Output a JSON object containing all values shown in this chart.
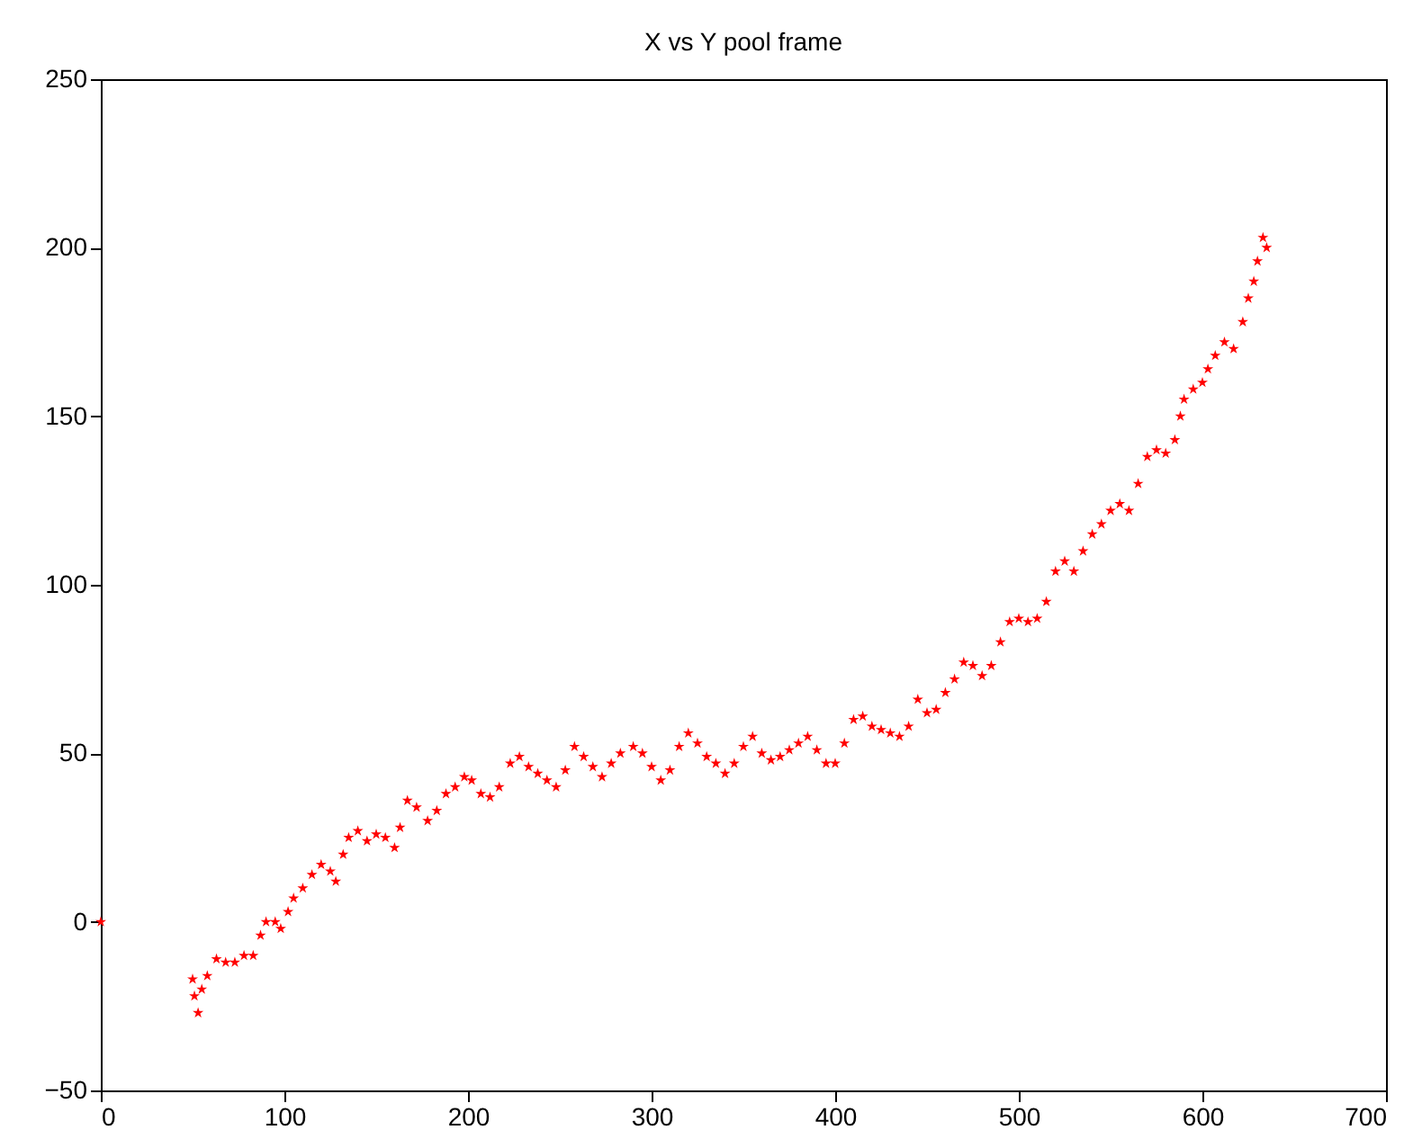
{
  "chart_data": {
    "type": "scatter",
    "title": "X vs Y pool frame",
    "marker": "star",
    "grid": false,
    "xlim": [
      0,
      700
    ],
    "xticks": [
      0,
      100,
      200,
      300,
      400,
      500,
      600,
      700
    ],
    "ylim": [
      -50,
      250
    ],
    "yticks": [
      -50,
      0,
      50,
      100,
      150,
      200,
      250
    ],
    "series": [
      {
        "color": "#ff0000",
        "x": [
          0,
          50,
          51,
          53,
          55,
          58,
          63,
          68,
          73,
          78,
          83,
          87,
          90,
          95,
          98,
          102,
          105,
          110,
          115,
          120,
          125,
          128,
          132,
          135,
          140,
          145,
          150,
          155,
          160,
          163,
          167,
          172,
          178,
          183,
          188,
          193,
          198,
          202,
          207,
          212,
          217,
          223,
          228,
          233,
          238,
          243,
          248,
          253,
          258,
          263,
          268,
          273,
          278,
          283,
          290,
          295,
          300,
          305,
          310,
          315,
          320,
          325,
          330,
          335,
          340,
          345,
          350,
          355,
          360,
          365,
          370,
          375,
          380,
          385,
          390,
          395,
          400,
          405,
          410,
          415,
          420,
          425,
          430,
          435,
          440,
          445,
          450,
          455,
          460,
          465,
          470,
          475,
          480,
          485,
          490,
          495,
          500,
          505,
          510,
          515,
          520,
          525,
          530,
          535,
          540,
          545,
          550,
          555,
          560,
          565,
          570,
          575,
          580,
          585,
          588,
          590,
          595,
          600,
          603,
          607,
          612,
          617,
          622,
          625,
          628,
          630,
          633,
          635
        ],
        "values": [
          0,
          -17,
          -22,
          -27,
          -20,
          -16,
          -11,
          -12,
          -12,
          -10,
          -10,
          -4,
          0,
          0,
          -2,
          3,
          7,
          10,
          14,
          17,
          15,
          12,
          20,
          25,
          27,
          24,
          26,
          25,
          22,
          28,
          36,
          34,
          30,
          33,
          38,
          40,
          43,
          42,
          38,
          37,
          40,
          47,
          49,
          46,
          44,
          42,
          40,
          45,
          52,
          49,
          46,
          43,
          47,
          50,
          52,
          50,
          46,
          42,
          45,
          52,
          56,
          53,
          49,
          47,
          44,
          47,
          52,
          55,
          50,
          48,
          49,
          51,
          53,
          55,
          51,
          47,
          47,
          53,
          60,
          61,
          58,
          57,
          56,
          55,
          58,
          66,
          62,
          63,
          68,
          72,
          77,
          76,
          73,
          76,
          83,
          89,
          90,
          89,
          90,
          95,
          104,
          107,
          104,
          110,
          115,
          118,
          122,
          124,
          122,
          130,
          138,
          140,
          139,
          143,
          150,
          155,
          158,
          160,
          164,
          168,
          172,
          170,
          178,
          185,
          190,
          196,
          203,
          200
        ]
      }
    ]
  }
}
